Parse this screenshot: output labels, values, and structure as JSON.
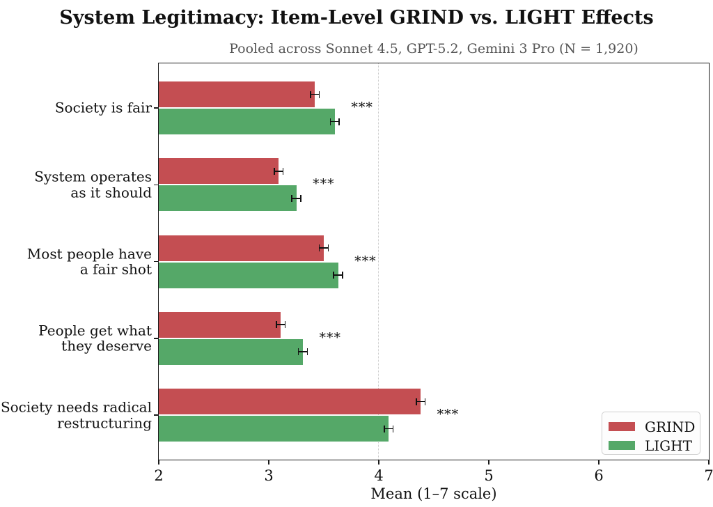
{
  "title": "System Legitimacy: Item-Level GRIND vs. LIGHT Effects",
  "subtitle": "Pooled across Sonnet 4.5, GPT-5.2, Gemini 3 Pro  (N = 1,920)",
  "chart_data": {
    "type": "bar",
    "orientation": "horizontal",
    "title": "System Legitimacy: Item-Level GRIND vs. LIGHT Effects",
    "subtitle": "Pooled across Sonnet 4.5, GPT-5.2, Gemini 3 Pro  (N = 1,920)",
    "categories": [
      "Society is fair",
      "System operates\nas it should",
      "Most people have\na fair shot",
      "People get what\nthey deserve",
      "Society needs radical\nrestructuring"
    ],
    "series": [
      {
        "name": "GRIND",
        "color": "#c44e52",
        "values": [
          3.42,
          3.09,
          3.5,
          3.11,
          4.38
        ],
        "errors": [
          0.04,
          0.04,
          0.04,
          0.04,
          0.04
        ]
      },
      {
        "name": "LIGHT",
        "color": "#55a868",
        "values": [
          3.6,
          3.25,
          3.63,
          3.31,
          4.09
        ],
        "errors": [
          0.04,
          0.04,
          0.04,
          0.04,
          0.04
        ]
      }
    ],
    "significance": [
      "***",
      "***",
      "***",
      "***",
      "***"
    ],
    "xlabel": "Mean (1–7 scale)",
    "xlim": [
      2,
      7
    ],
    "xticks": [
      2,
      3,
      4,
      5,
      6,
      7
    ],
    "reference_line_x": 4,
    "grid": "single dotted vertical reference line at x=4",
    "legend_position": "lower right"
  },
  "colors": {
    "grind": "#c44e52",
    "light": "#55a868",
    "axis": "#1a1a1a",
    "subtitle_text": "#555555",
    "gridline": "#c8c8c8",
    "legend_border": "#cfcfcf"
  }
}
